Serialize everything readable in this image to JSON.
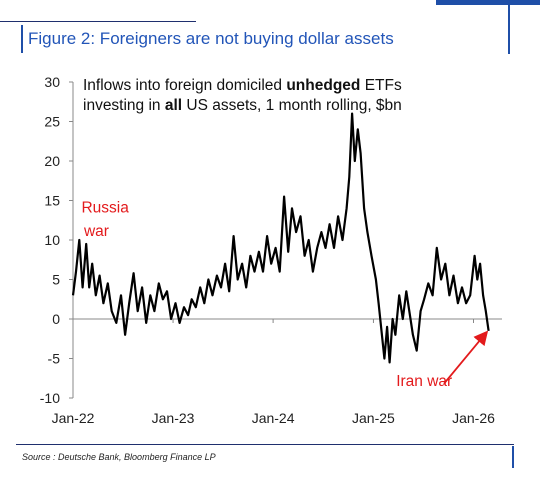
{
  "figure": {
    "title": "Figure 2: Foreigners are not buying dollar assets",
    "source": "Source : Deutsche Bank, Bloomberg Finance LP"
  },
  "chart_data": {
    "type": "line",
    "title_parts": [
      "Inflows into foreign domiciled ",
      "unhedged",
      " ETFs",
      "investing in ",
      "all",
      " US assets,  1 month rolling, $bn"
    ],
    "xlabel": "",
    "ylabel": "",
    "ylim": [
      -10,
      30
    ],
    "yticks": [
      -10,
      -5,
      0,
      5,
      10,
      15,
      20,
      25,
      30
    ],
    "xlim": [
      "2022-01-01",
      "2026-04-15"
    ],
    "xticks": [
      {
        "date": "2022-01-01",
        "label": "Jan-22"
      },
      {
        "date": "2023-01-01",
        "label": "Jan-23"
      },
      {
        "date": "2024-01-01",
        "label": "Jan-24"
      },
      {
        "date": "2025-01-01",
        "label": "Jan-25"
      },
      {
        "date": "2026-01-01",
        "label": "Jan-26"
      }
    ],
    "grid": false,
    "legend": "none",
    "line_color": "#000000",
    "annotation_color": "#e31a1c",
    "annotations": [
      {
        "text": "Russia",
        "date": "2022-02-01",
        "y": 13.5
      },
      {
        "text": "war",
        "date": "2022-02-10",
        "y": 10.5
      },
      {
        "text": "Iran war",
        "date": "2025-03-25",
        "y": -8.5
      }
    ],
    "arrow": {
      "from": {
        "date": "2025-09-15",
        "y": -8.2
      },
      "to": {
        "date": "2026-02-15",
        "y": -1.8
      }
    },
    "series": [
      {
        "points": [
          [
            "2022-01-01",
            3
          ],
          [
            "2022-01-12",
            6
          ],
          [
            "2022-01-24",
            10
          ],
          [
            "2022-02-05",
            4
          ],
          [
            "2022-02-18",
            9.5
          ],
          [
            "2022-03-01",
            4
          ],
          [
            "2022-03-12",
            7
          ],
          [
            "2022-03-25",
            3
          ],
          [
            "2022-04-08",
            5.5
          ],
          [
            "2022-04-22",
            2
          ],
          [
            "2022-05-08",
            4.5
          ],
          [
            "2022-05-22",
            1
          ],
          [
            "2022-06-08",
            -0.5
          ],
          [
            "2022-06-25",
            3
          ],
          [
            "2022-07-10",
            -2
          ],
          [
            "2022-07-25",
            2
          ],
          [
            "2022-08-10",
            5.8
          ],
          [
            "2022-08-25",
            1
          ],
          [
            "2022-09-10",
            4
          ],
          [
            "2022-09-25",
            -0.5
          ],
          [
            "2022-10-10",
            3
          ],
          [
            "2022-10-25",
            1
          ],
          [
            "2022-11-10",
            4.5
          ],
          [
            "2022-11-25",
            2.5
          ],
          [
            "2022-12-10",
            3.5
          ],
          [
            "2022-12-25",
            0
          ],
          [
            "2023-01-10",
            2
          ],
          [
            "2023-01-25",
            -0.5
          ],
          [
            "2023-02-10",
            1.5
          ],
          [
            "2023-02-25",
            0.5
          ],
          [
            "2023-03-10",
            2.5
          ],
          [
            "2023-03-25",
            1.5
          ],
          [
            "2023-04-10",
            4
          ],
          [
            "2023-04-25",
            2
          ],
          [
            "2023-05-10",
            5
          ],
          [
            "2023-05-25",
            3
          ],
          [
            "2023-06-10",
            5.5
          ],
          [
            "2023-06-25",
            4
          ],
          [
            "2023-07-10",
            7
          ],
          [
            "2023-07-25",
            3.5
          ],
          [
            "2023-08-10",
            10.5
          ],
          [
            "2023-08-25",
            5
          ],
          [
            "2023-09-10",
            7
          ],
          [
            "2023-09-25",
            4
          ],
          [
            "2023-10-10",
            8
          ],
          [
            "2023-10-25",
            6
          ],
          [
            "2023-11-10",
            8.5
          ],
          [
            "2023-11-25",
            6
          ],
          [
            "2023-12-10",
            10.5
          ],
          [
            "2023-12-25",
            7
          ],
          [
            "2024-01-10",
            9
          ],
          [
            "2024-01-25",
            6
          ],
          [
            "2024-02-10",
            15.5
          ],
          [
            "2024-02-25",
            8.5
          ],
          [
            "2024-03-10",
            14
          ],
          [
            "2024-03-25",
            11
          ],
          [
            "2024-04-10",
            13
          ],
          [
            "2024-04-25",
            8
          ],
          [
            "2024-05-10",
            10
          ],
          [
            "2024-05-25",
            6
          ],
          [
            "2024-06-10",
            9
          ],
          [
            "2024-06-25",
            11
          ],
          [
            "2024-07-10",
            9
          ],
          [
            "2024-07-25",
            12
          ],
          [
            "2024-08-10",
            9
          ],
          [
            "2024-08-25",
            13
          ],
          [
            "2024-09-10",
            10
          ],
          [
            "2024-09-25",
            14
          ],
          [
            "2024-10-05",
            18
          ],
          [
            "2024-10-15",
            26
          ],
          [
            "2024-10-25",
            20
          ],
          [
            "2024-11-05",
            24
          ],
          [
            "2024-11-15",
            21
          ],
          [
            "2024-11-28",
            14
          ],
          [
            "2024-12-10",
            11
          ],
          [
            "2024-12-25",
            8
          ],
          [
            "2025-01-10",
            5
          ],
          [
            "2025-01-20",
            2
          ],
          [
            "2025-02-01",
            -2
          ],
          [
            "2025-02-10",
            -5
          ],
          [
            "2025-02-20",
            -1
          ],
          [
            "2025-03-01",
            -5.5
          ],
          [
            "2025-03-12",
            0
          ],
          [
            "2025-03-22",
            -2
          ],
          [
            "2025-04-05",
            3
          ],
          [
            "2025-04-18",
            0
          ],
          [
            "2025-05-01",
            3.5
          ],
          [
            "2025-05-12",
            1
          ],
          [
            "2025-05-25",
            -2
          ],
          [
            "2025-06-08",
            -4
          ],
          [
            "2025-06-22",
            1
          ],
          [
            "2025-07-05",
            2.5
          ],
          [
            "2025-07-20",
            4.5
          ],
          [
            "2025-08-05",
            3
          ],
          [
            "2025-08-20",
            9
          ],
          [
            "2025-09-05",
            5
          ],
          [
            "2025-09-20",
            7
          ],
          [
            "2025-10-05",
            3
          ],
          [
            "2025-10-20",
            5.5
          ],
          [
            "2025-11-05",
            2
          ],
          [
            "2025-11-20",
            4
          ],
          [
            "2025-12-05",
            2
          ],
          [
            "2025-12-20",
            3
          ],
          [
            "2026-01-05",
            8
          ],
          [
            "2026-01-15",
            5
          ],
          [
            "2026-01-25",
            7
          ],
          [
            "2026-02-05",
            3
          ],
          [
            "2026-02-15",
            1
          ],
          [
            "2026-02-25",
            -1.5
          ]
        ]
      }
    ]
  }
}
